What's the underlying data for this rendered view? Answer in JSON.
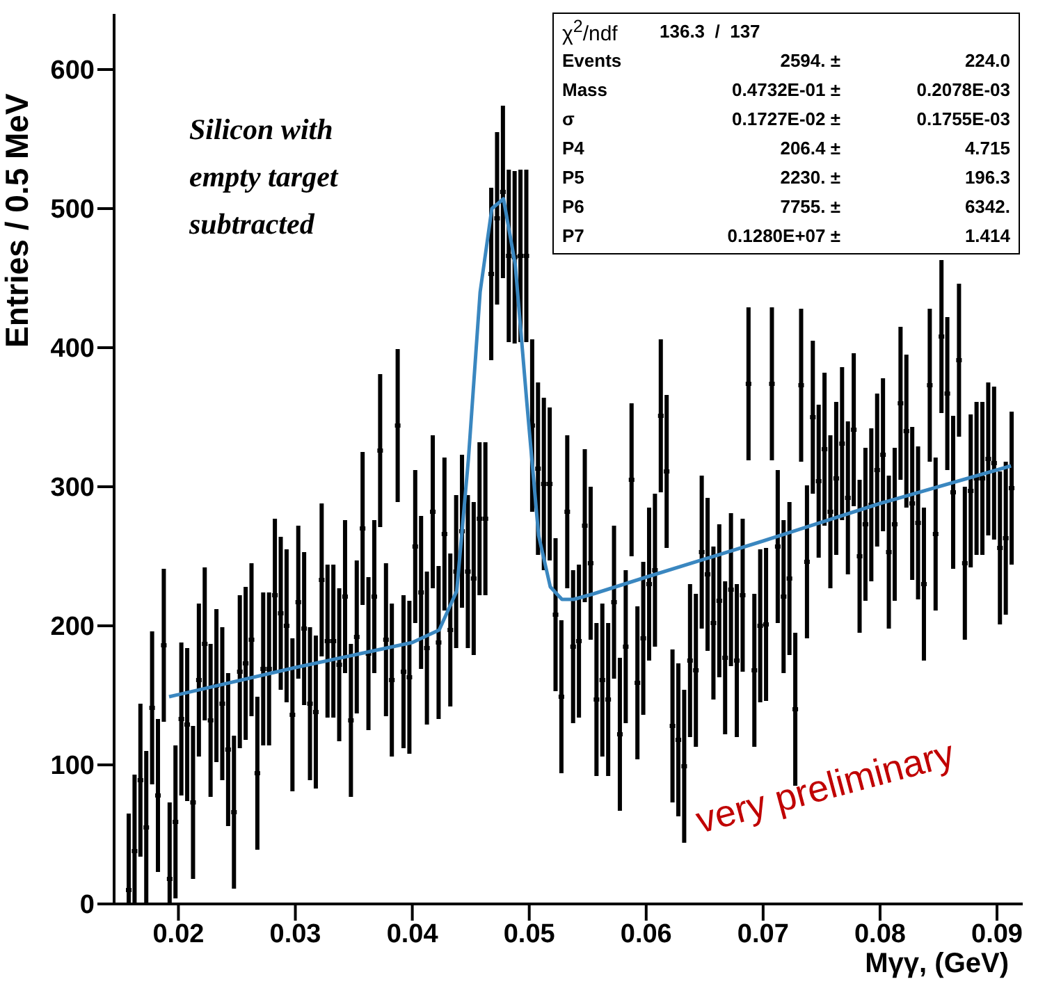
{
  "chart_data": {
    "type": "scatter",
    "xlabel": "Mγγ, (GeV)",
    "ylabel": "Entries / 0.5 MeV",
    "xlim": [
      0.0145,
      0.0922
    ],
    "xticks": [
      0.02,
      0.03,
      0.04,
      0.05,
      0.06,
      0.07,
      0.08,
      0.09
    ],
    "ylim": [
      0,
      640
    ],
    "yticks": [
      0,
      100,
      200,
      300,
      400,
      500,
      600
    ],
    "series": [
      {
        "marker": "square",
        "color": "#000000",
        "x": [
          0.01575,
          0.01625,
          0.01675,
          0.01725,
          0.01775,
          0.01825,
          0.01875,
          0.01925,
          0.01975,
          0.02025,
          0.02075,
          0.02125,
          0.02175,
          0.02225,
          0.02275,
          0.02325,
          0.02375,
          0.02425,
          0.02475,
          0.02525,
          0.02575,
          0.02625,
          0.02675,
          0.02725,
          0.02775,
          0.02825,
          0.02875,
          0.02925,
          0.02975,
          0.03025,
          0.03075,
          0.03125,
          0.03175,
          0.03225,
          0.03275,
          0.03325,
          0.03375,
          0.03425,
          0.03475,
          0.03525,
          0.03575,
          0.03625,
          0.03675,
          0.03725,
          0.03775,
          0.03825,
          0.03875,
          0.03925,
          0.03975,
          0.04025,
          0.04075,
          0.04125,
          0.04175,
          0.04225,
          0.04275,
          0.04325,
          0.04375,
          0.04425,
          0.04475,
          0.04525,
          0.04575,
          0.04625,
          0.04675,
          0.04725,
          0.04775,
          0.04825,
          0.04875,
          0.04925,
          0.04975,
          0.05025,
          0.05075,
          0.05125,
          0.05175,
          0.05225,
          0.05275,
          0.05325,
          0.05375,
          0.05425,
          0.05475,
          0.05525,
          0.05575,
          0.05625,
          0.05675,
          0.05725,
          0.05775,
          0.05825,
          0.05875,
          0.05925,
          0.05975,
          0.06025,
          0.06075,
          0.06125,
          0.06175,
          0.06225,
          0.06275,
          0.06325,
          0.06375,
          0.06425,
          0.06475,
          0.06525,
          0.06575,
          0.06625,
          0.06675,
          0.06725,
          0.06775,
          0.06825,
          0.06875,
          0.06925,
          0.06975,
          0.07025,
          0.07075,
          0.07125,
          0.07175,
          0.07225,
          0.07275,
          0.07325,
          0.07375,
          0.07425,
          0.07475,
          0.07525,
          0.07575,
          0.07625,
          0.07675,
          0.07725,
          0.07775,
          0.07825,
          0.07875,
          0.07925,
          0.07975,
          0.08025,
          0.08075,
          0.08125,
          0.08175,
          0.08225,
          0.08275,
          0.08325,
          0.08375,
          0.08425,
          0.08475,
          0.08525,
          0.08575,
          0.08625,
          0.08675,
          0.08725,
          0.08775,
          0.08825,
          0.08875,
          0.08925,
          0.08975,
          0.09025,
          0.09075,
          0.09125
        ],
        "values": [
          10,
          38,
          89,
          55,
          141,
          78,
          186,
          18,
          59,
          133,
          129,
          73,
          161,
          187,
          132,
          157,
          144,
          111,
          66,
          167,
          173,
          190,
          94,
          169,
          169,
          222,
          209,
          200,
          136,
          217,
          198,
          144,
          138,
          233,
          189,
          189,
          172,
          221,
          132,
          192,
          270,
          180,
          221,
          326,
          190,
          161,
          344,
          167,
          163,
          257,
          224,
          184,
          282,
          188,
          266,
          197,
          239,
          268,
          239,
          234,
          277,
          277,
          453,
          493,
          512,
          466,
          465,
          466,
          466,
          344,
          313,
          302,
          302,
          208,
          149,
          282,
          185,
          189,
          272,
          245,
          147,
          161,
          147,
          217,
          122,
          185,
          305,
          159,
          191,
          230,
          240,
          351,
          311,
          128,
          118,
          99,
          175,
          168,
          253,
          237,
          202,
          218,
          177,
          226,
          175,
          222,
          374,
          168,
          200,
          201,
          374,
          257,
          221,
          234,
          140,
          373,
          246,
          350,
          304,
          327,
          282,
          306,
          331,
          292,
          341,
          250,
          273,
          287,
          312,
          323,
          253,
          273,
          360,
          340,
          288,
          274,
          230,
          373,
          266,
          408,
          367,
          296,
          391,
          245,
          297,
          306,
          306,
          320,
          317,
          256,
          263,
          299
        ],
        "errors": [
          [
            0,
            65
          ],
          [
            0,
            93
          ],
          55,
          55,
          55,
          55,
          55,
          [
            0,
            73
          ],
          55,
          55,
          55,
          55,
          55,
          55,
          55,
          55,
          55,
          55,
          55,
          55,
          55,
          55,
          55,
          55,
          55,
          55,
          55,
          55,
          55,
          55,
          55,
          55,
          55,
          55,
          55,
          55,
          55,
          55,
          55,
          55,
          55,
          55,
          55,
          55,
          55,
          55,
          55,
          55,
          55,
          55,
          55,
          55,
          55,
          55,
          55,
          55,
          55,
          55,
          55,
          55,
          55,
          55,
          62,
          62,
          62,
          62,
          62,
          62,
          62,
          62,
          62,
          62,
          55,
          55,
          55,
          55,
          55,
          55,
          55,
          55,
          55,
          55,
          55,
          55,
          55,
          55,
          55,
          55,
          55,
          55,
          55,
          55,
          55,
          55,
          55,
          55,
          55,
          55,
          55,
          55,
          55,
          55,
          55,
          55,
          55,
          55,
          55,
          55,
          55,
          55,
          55,
          55,
          55,
          55,
          55,
          55,
          55,
          55,
          55,
          55,
          55,
          55,
          55,
          55,
          55,
          55,
          55,
          55,
          55,
          55,
          55,
          55,
          55,
          55,
          55,
          55,
          55,
          55,
          55,
          55,
          55,
          55,
          55,
          55,
          55,
          55,
          55,
          55,
          55,
          55,
          55,
          55
        ]
      },
      {
        "type": "line",
        "marker": "none",
        "color": "#3a87c0",
        "x": [
          0.0192,
          0.03,
          0.04,
          0.0423,
          0.0438,
          0.0448,
          0.0458,
          0.0468,
          0.0478,
          0.0488,
          0.0498,
          0.0508,
          0.0518,
          0.0528,
          0.0538,
          0.0555,
          0.06,
          0.07,
          0.08,
          0.0912
        ],
        "values": [
          149,
          170,
          188,
          197,
          225,
          320,
          440,
          500,
          507,
          460,
          360,
          265,
          228,
          219,
          219,
          223,
          235,
          261,
          288,
          315
        ]
      }
    ],
    "annotations": [
      "Silicon with empty target subtracted",
      "very preliminary",
      "χ$^{2}$/ndf\t136.3  /  137\t",
      "Events\t2594. ±\t224.0",
      "Mass\t0.4732E-01 ±\t0.2078E-03",
      "σ\t0.1727E-02 ±\t0.1755E-03",
      "P4\t206.4 ±\t4.715",
      "P5\t2230. ±\t196.3",
      "P6\t7755. ±\t6342.",
      "P7\t0.1280E+07 ±\t1.414"
    ]
  }
}
